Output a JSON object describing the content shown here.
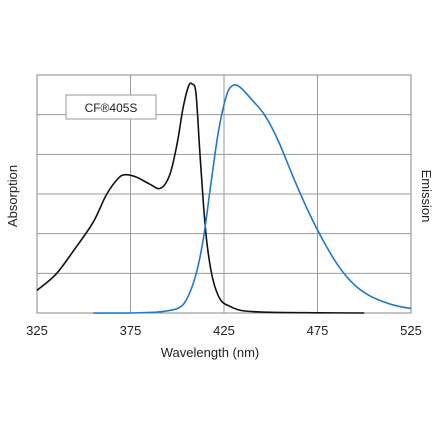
{
  "chart_data": {
    "type": "line",
    "title": "",
    "xlabel": "Wavelength (nm)",
    "ylabel_left": "Absorption",
    "ylabel_right": "Emission",
    "xlim": [
      325,
      525
    ],
    "ylim": [
      0,
      1.05
    ],
    "x_ticks": [
      "325",
      "375",
      "425",
      "475",
      "525"
    ],
    "grid": true,
    "legend_label": "CF®405S",
    "series": [
      {
        "color": "#111111",
        "points": [
          [
            325,
            0.1
          ],
          [
            335,
            0.17
          ],
          [
            345,
            0.28
          ],
          [
            355,
            0.4
          ],
          [
            362,
            0.52
          ],
          [
            368,
            0.59
          ],
          [
            372,
            0.61
          ],
          [
            378,
            0.6
          ],
          [
            385,
            0.57
          ],
          [
            391,
            0.55
          ],
          [
            396,
            0.61
          ],
          [
            400,
            0.75
          ],
          [
            403,
            0.9
          ],
          [
            406,
            1.0
          ],
          [
            408,
            1.01
          ],
          [
            410,
            0.97
          ],
          [
            412,
            0.72
          ],
          [
            414,
            0.48
          ],
          [
            416,
            0.3
          ],
          [
            419,
            0.15
          ],
          [
            423,
            0.06
          ],
          [
            428,
            0.03
          ],
          [
            435,
            0.01
          ],
          [
            450,
            0.003
          ],
          [
            475,
            0.001
          ],
          [
            500,
            0.0
          ]
        ]
      },
      {
        "color": "#1f78c8",
        "points": [
          [
            355,
            0.0
          ],
          [
            375,
            0.0
          ],
          [
            390,
            0.005
          ],
          [
            400,
            0.02
          ],
          [
            405,
            0.06
          ],
          [
            410,
            0.17
          ],
          [
            414,
            0.33
          ],
          [
            418,
            0.57
          ],
          [
            422,
            0.8
          ],
          [
            426,
            0.95
          ],
          [
            429,
            1.0
          ],
          [
            433,
            1.0
          ],
          [
            440,
            0.94
          ],
          [
            447,
            0.87
          ],
          [
            454,
            0.76
          ],
          [
            462,
            0.6
          ],
          [
            470,
            0.45
          ],
          [
            478,
            0.32
          ],
          [
            486,
            0.21
          ],
          [
            494,
            0.13
          ],
          [
            502,
            0.08
          ],
          [
            510,
            0.05
          ],
          [
            518,
            0.03
          ],
          [
            525,
            0.02
          ]
        ]
      }
    ]
  }
}
